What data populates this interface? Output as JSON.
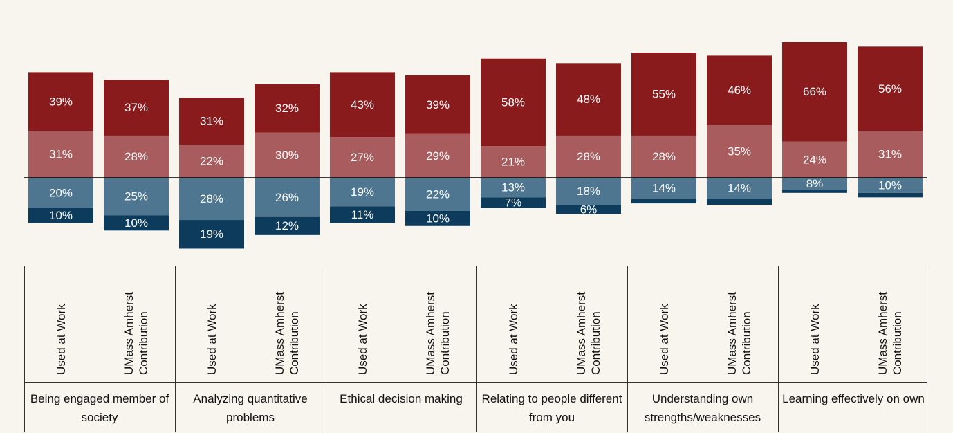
{
  "chart_data": {
    "type": "diverging_bar",
    "groups": [
      "Being engaged member of society",
      "Analyzing quantitative problems",
      "Ethical decision making",
      "Relating to people different from you",
      "Understanding own strengths/weaknesses",
      "Learning effectively on own"
    ],
    "subcategories": [
      "Used at Work",
      "UMass Amherst Contribution"
    ],
    "series": [
      {
        "color": "#a85c5e",
        "side": "above",
        "values": [
          31,
          28,
          22,
          30,
          27,
          29,
          21,
          28,
          28,
          35,
          24,
          31
        ],
        "value_labels": [
          "31%",
          "28%",
          "22%",
          "30%",
          "27%",
          "29%",
          "21%",
          "28%",
          "28%",
          "35%",
          "24%",
          "31%"
        ]
      },
      {
        "color": "#891b1d",
        "side": "above",
        "values": [
          39,
          37,
          31,
          32,
          43,
          39,
          58,
          48,
          55,
          46,
          66,
          56
        ],
        "value_labels": [
          "39%",
          "37%",
          "31%",
          "32%",
          "43%",
          "39%",
          "58%",
          "48%",
          "55%",
          "46%",
          "66%",
          "56%"
        ]
      },
      {
        "color": "#4e7690",
        "side": "below",
        "values": [
          20,
          25,
          28,
          26,
          19,
          22,
          13,
          18,
          14,
          14,
          8,
          10
        ],
        "value_labels": [
          "20%",
          "25%",
          "28%",
          "26%",
          "19%",
          "22%",
          "13%",
          "18%",
          "14%",
          "14%",
          "8%",
          "10%"
        ]
      },
      {
        "color": "#0c3b5b",
        "side": "below",
        "values": [
          10,
          10,
          19,
          12,
          11,
          10,
          7,
          6,
          3,
          4,
          2,
          3
        ],
        "value_labels": [
          "10%",
          "10%",
          "19%",
          "12%",
          "11%",
          "10%",
          "7%",
          "6%",
          null,
          null,
          null,
          null
        ]
      }
    ]
  }
}
